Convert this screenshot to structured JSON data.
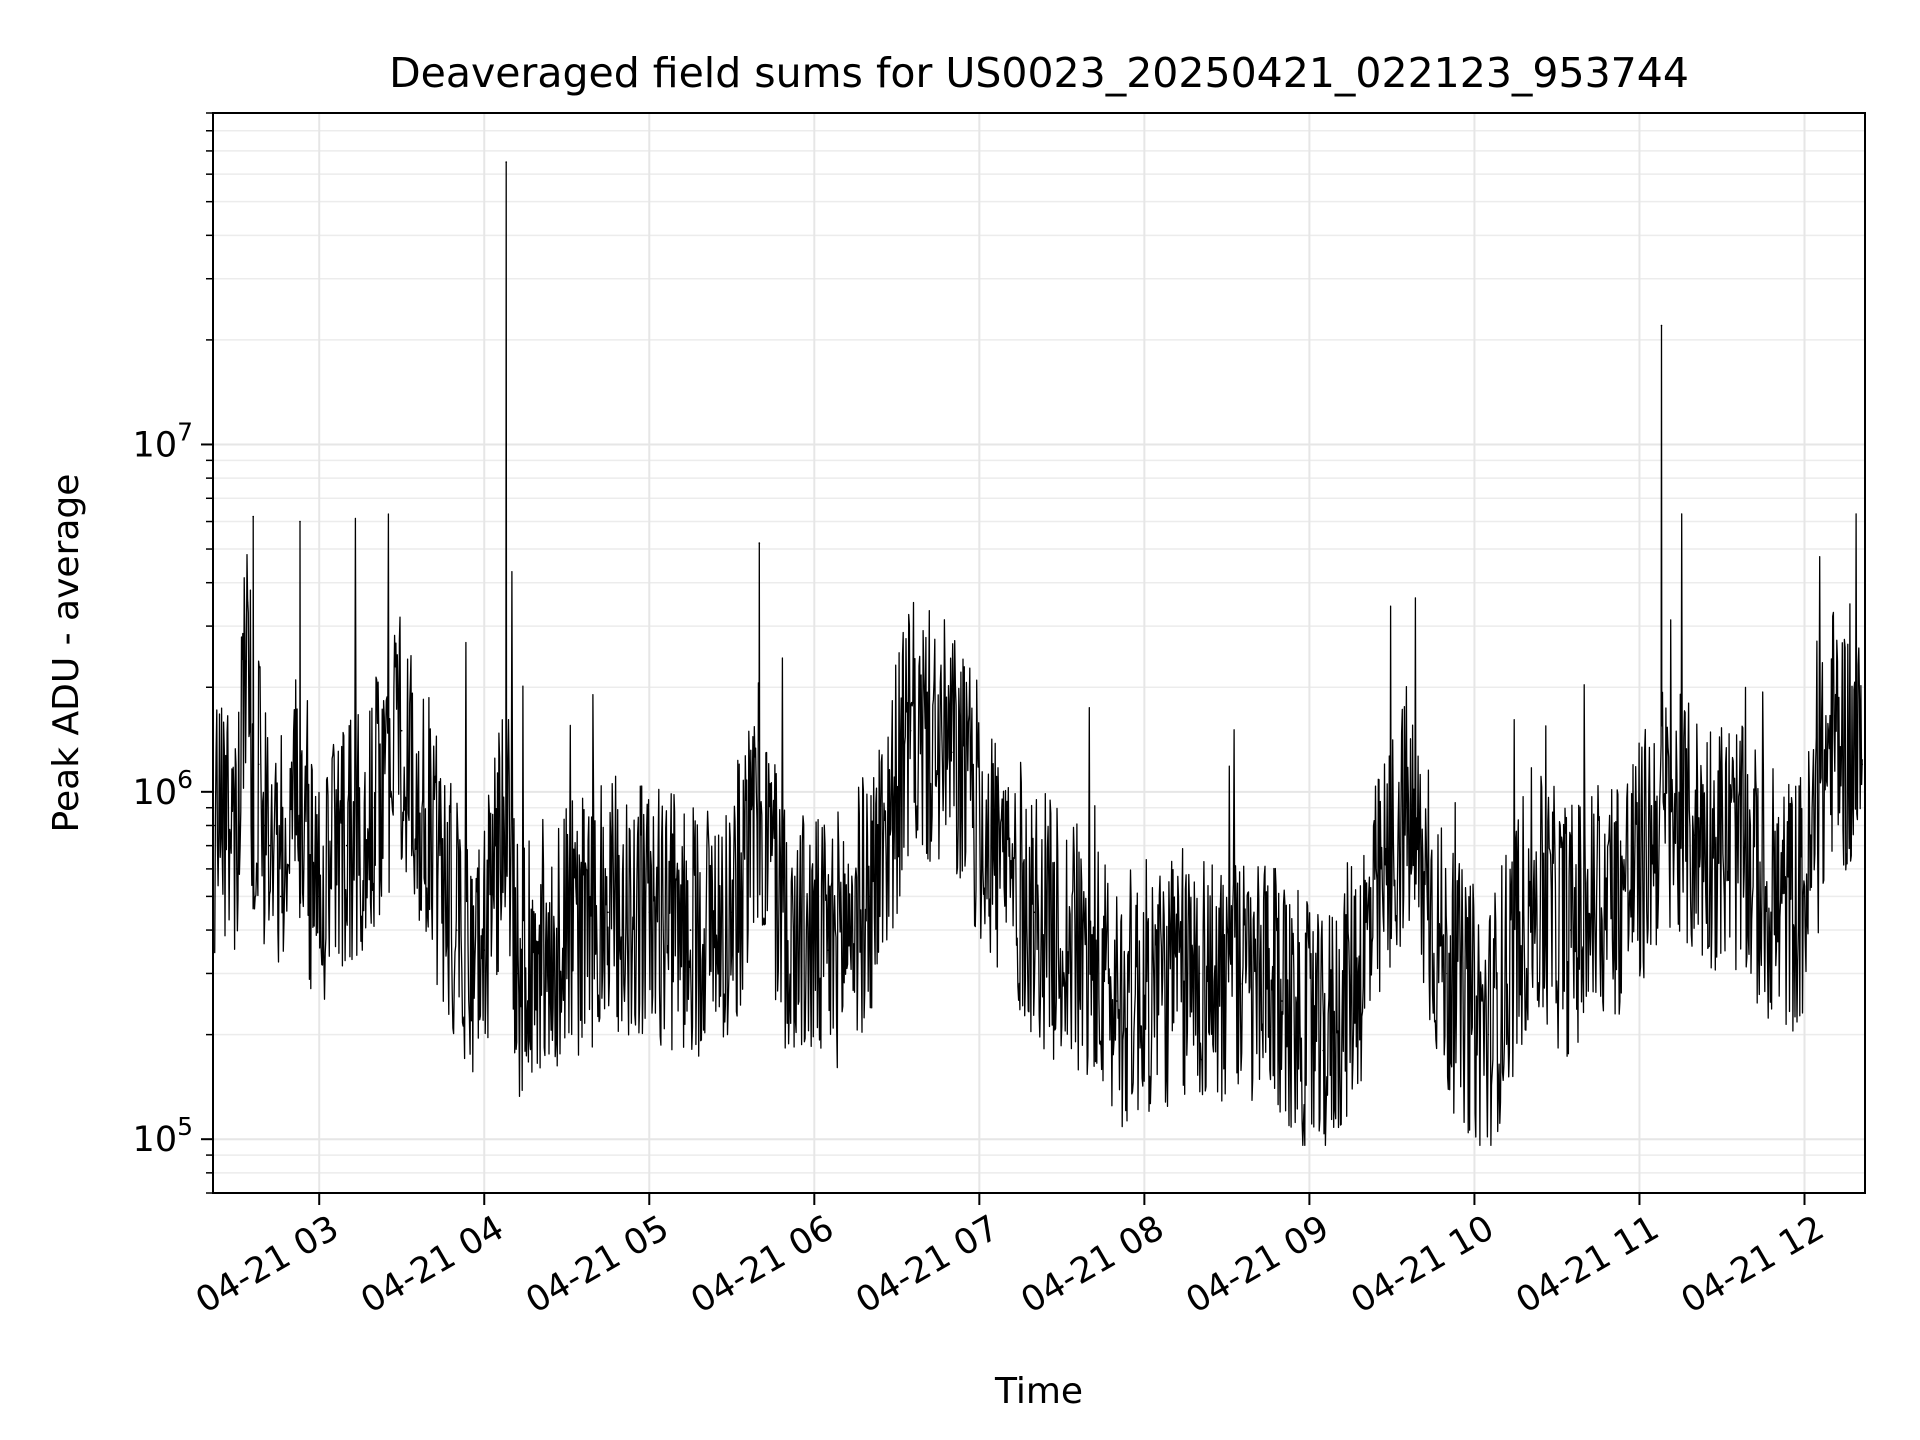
{
  "chart_data": {
    "type": "line",
    "title": "Deaveraged field sums for US0023_20250421_022123_953744",
    "xlabel": "Time",
    "ylabel": "Peak ADU - average",
    "xlim": [
      "2025-04-21 02:21:23",
      "2025-04-21 12:22:00"
    ],
    "ylim": [
      70000,
      90000000
    ],
    "yscale": "log",
    "grid": true,
    "line_color": "#000000",
    "x_tick_labels": [
      "04-21 03",
      "04-21 04",
      "04-21 05",
      "04-21 06",
      "04-21 07",
      "04-21 08",
      "04-21 09",
      "04-21 10",
      "04-21 11",
      "04-21 12"
    ],
    "y_tick_labels": [
      {
        "base": "10",
        "exp": "5",
        "value": 100000
      },
      {
        "base": "10",
        "exp": "6",
        "value": 1000000
      },
      {
        "base": "10",
        "exp": "7",
        "value": 10000000
      }
    ],
    "series": [
      {
        "x": [
          "2025-04-21 02:22",
          "2025-04-21 02:26",
          "2025-04-21 02:30",
          "2025-04-21 02:34",
          "2025-04-21 02:36",
          "2025-04-21 02:38",
          "2025-04-21 02:40",
          "2025-04-21 02:42",
          "2025-04-21 02:46",
          "2025-04-21 02:50",
          "2025-04-21 02:53",
          "2025-04-21 02:56",
          "2025-04-21 03:00",
          "2025-04-21 03:10",
          "2025-04-21 03:20",
          "2025-04-21 03:30",
          "2025-04-21 03:40",
          "2025-04-21 03:50",
          "2025-04-21 04:00",
          "2025-04-21 04:08",
          "2025-04-21 04:12",
          "2025-04-21 04:20",
          "2025-04-21 04:30",
          "2025-04-21 04:45",
          "2025-04-21 05:00",
          "2025-04-21 05:15",
          "2025-04-21 05:30",
          "2025-04-21 05:40",
          "2025-04-21 05:50",
          "2025-04-21 06:05",
          "2025-04-21 06:20",
          "2025-04-21 06:35",
          "2025-04-21 06:50",
          "2025-04-21 07:05",
          "2025-04-21 07:20",
          "2025-04-21 07:35",
          "2025-04-21 07:50",
          "2025-04-21 08:05",
          "2025-04-21 08:20",
          "2025-04-21 08:35",
          "2025-04-21 08:50",
          "2025-04-21 09:05",
          "2025-04-21 09:20",
          "2025-04-21 09:35",
          "2025-04-21 09:50",
          "2025-04-21 10:05",
          "2025-04-21 10:20",
          "2025-04-21 10:35",
          "2025-04-21 10:50",
          "2025-04-21 11:00",
          "2025-04-21 11:08",
          "2025-04-21 11:20",
          "2025-04-21 11:35",
          "2025-04-21 11:50",
          "2025-04-21 12:00",
          "2025-04-21 12:10",
          "2025-04-21 12:21"
        ],
        "values": [
          800000,
          900000,
          600000,
          3500000,
          6200000,
          1200000,
          800000,
          700000,
          500000,
          900000,
          6000000,
          600000,
          500000,
          700000,
          900000,
          1500000,
          800000,
          400000,
          350000,
          65000000,
          300000,
          350000,
          400000,
          450000,
          450000,
          400000,
          450000,
          5200000,
          400000,
          350000,
          500000,
          1500000,
          1300000,
          700000,
          450000,
          350000,
          250000,
          280000,
          300000,
          280000,
          250000,
          180000,
          350000,
          900000,
          300000,
          200000,
          500000,
          400000,
          500000,
          600000,
          22000000,
          750000,
          700000,
          450000,
          500000,
          1500000,
          1200000
        ]
      }
    ]
  }
}
